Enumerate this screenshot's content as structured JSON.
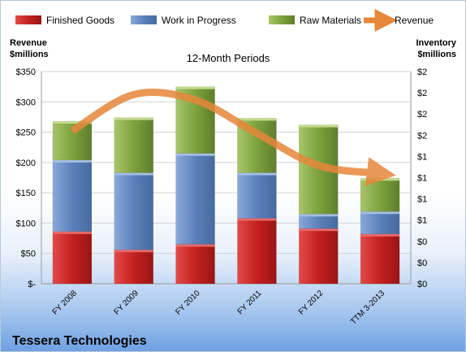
{
  "chart_data": {
    "type": "bar",
    "stacked": true,
    "title": "12-Month Periods",
    "company": "Tessera Technologies",
    "categories": [
      "FY 2008",
      "FY 2009",
      "FY 2010",
      "FY 2011",
      "FY 2012",
      "TTM 3-2013"
    ],
    "series": [
      {
        "name": "Finished Goods",
        "type": "bar",
        "color": "#c0201f",
        "values": [
          86,
          56,
          65,
          108,
          91,
          82
        ]
      },
      {
        "name": "Work in Progress",
        "type": "bar",
        "color": "#5a82bf",
        "values": [
          118,
          127,
          150,
          75,
          24,
          37
        ]
      },
      {
        "name": "Raw Materials",
        "type": "bar",
        "color": "#7ca23a",
        "values": [
          64,
          91,
          110,
          90,
          147,
          55
        ]
      },
      {
        "name": "Revenue",
        "type": "line",
        "color": "#e7873a",
        "values": [
          252,
          312,
          303,
          248,
          195,
          182
        ]
      }
    ],
    "ylabel_left": "Revenue\n$millions",
    "ylabel_right": "Inventory\n$millions",
    "ylim": [
      0,
      350
    ],
    "yticks_left": [
      "$-",
      "$50",
      "$100",
      "$150",
      "$200",
      "$250",
      "$300",
      "$350"
    ],
    "yticks_right": [
      "$0",
      "$0",
      "$0",
      "$1",
      "$1",
      "$1",
      "$1",
      "$2",
      "$2",
      "$2",
      "$2"
    ],
    "legend_position": "top",
    "grid": true
  }
}
